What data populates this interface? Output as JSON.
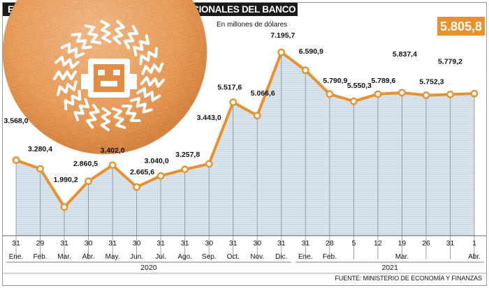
{
  "title": "EVOLUCIÓN DE LAS RESERVAS INTERNACIONALES DEL BANCO CENTRAL",
  "subtitle": "En millones de dólares",
  "highlight_value": "5.805,8",
  "source": "FUENTE: MINISTERIO DE ECONOMÍA Y FINANZAS",
  "colors": {
    "accent": "#e8912f",
    "line": "#e8912f",
    "fill": "#dde8ef",
    "text": "#111111"
  },
  "illustration": "coin-with-sun-mask-icon",
  "chart_data": {
    "type": "area",
    "title": "EVOLUCIÓN DE LAS RESERVAS INTERNACIONALES DEL BANCO CENTRAL",
    "ylabel": "En millones de dólares",
    "xlabel": "",
    "ylim": [
      1500,
      7500
    ],
    "grid": "vertical",
    "x": [
      {
        "day": "31",
        "month": "Ene."
      },
      {
        "day": "29",
        "month": "Feb."
      },
      {
        "day": "31",
        "month": "Mar."
      },
      {
        "day": "30",
        "month": "Abr."
      },
      {
        "day": "31",
        "month": "May."
      },
      {
        "day": "30",
        "month": "Jun."
      },
      {
        "day": "31",
        "month": "Jul."
      },
      {
        "day": "31",
        "month": "Ago."
      },
      {
        "day": "30",
        "month": "Sep."
      },
      {
        "day": "31",
        "month": "Oct."
      },
      {
        "day": "30",
        "month": "Nov."
      },
      {
        "day": "31",
        "month": "Dic."
      },
      {
        "day": "31",
        "month": "Ene."
      },
      {
        "day": "28",
        "month": "Feb."
      },
      {
        "day": "5",
        "month": ""
      },
      {
        "day": "12",
        "month": ""
      },
      {
        "day": "19",
        "month": "Mar."
      },
      {
        "day": "26",
        "month": ""
      },
      {
        "day": "31",
        "month": ""
      },
      {
        "day": "1",
        "month": "Abr."
      }
    ],
    "years": [
      {
        "label": "2020",
        "from": 0,
        "to": 11
      },
      {
        "label": "2021",
        "from": 12,
        "to": 19
      }
    ],
    "series": [
      {
        "values": [
          3568.0,
          3280.4,
          1990.2,
          2860.5,
          3402.0,
          2665.6,
          3040.0,
          3257.8,
          3443.0,
          5517.6,
          5066.6,
          7195.7,
          6590.9,
          5790.9,
          5550.3,
          5789.6,
          5837.4,
          5752.3,
          5779.2,
          5805.8
        ],
        "labels": [
          "3.568,0",
          "3.280,4",
          "1.990,2",
          "2.860,5",
          "3.402,0",
          "2.665,6",
          "3.040,0",
          "3.257,8",
          "3.443,0",
          "5.517,6",
          "5.066,6",
          "7.195,7",
          "6.590,9",
          "5.790,9",
          "5.550,3",
          "5.789,6",
          "5.837,4",
          "5.752,3",
          "5.779,2",
          "5.805,8"
        ]
      }
    ]
  }
}
